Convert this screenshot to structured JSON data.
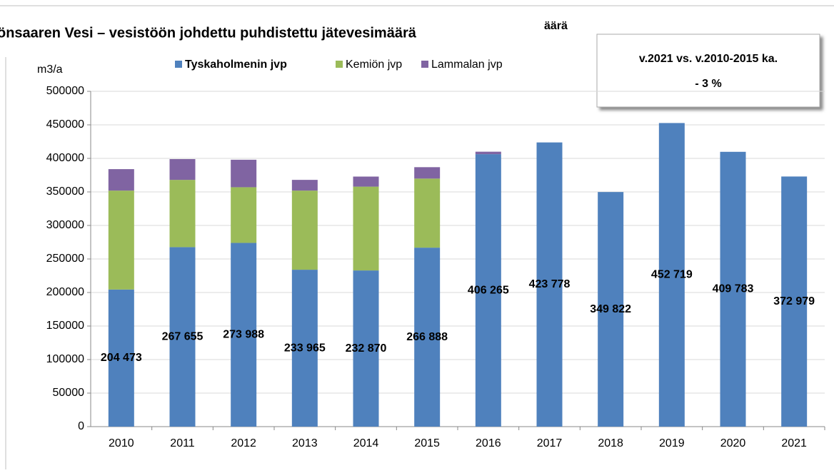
{
  "chart_data": {
    "type": "stacked_bar",
    "title": "önsaaren Vesi – vesistöön johdettu puhdistettu jätevesimäärä",
    "title_fragment": "äärä",
    "y_label": "m3/a",
    "annotation": [
      "v.2021 vs. v.2010-2015 ka.",
      "- 3 %"
    ],
    "categories": [
      "2010",
      "2011",
      "2012",
      "2013",
      "2014",
      "2015",
      "2016",
      "2017",
      "2018",
      "2019",
      "2020",
      "2021"
    ],
    "series": [
      {
        "name": "Tyskaholmenin jvp",
        "color": "#4f81bd",
        "values": [
          204473,
          267655,
          273988,
          233965,
          232870,
          266888,
          406265,
          423778,
          349822,
          452719,
          409783,
          372979
        ],
        "value_labels": [
          "204 473",
          "267 655",
          "273 988",
          "233 965",
          "232 870",
          "266 888",
          "406 265",
          "423 778",
          "349 822",
          "452 719",
          "409 783",
          "372 979"
        ]
      },
      {
        "name": "Kemiön jvp",
        "color": "#9bbb59",
        "values": [
          147500,
          100300,
          83000,
          118000,
          125000,
          103000,
          null,
          null,
          null,
          null,
          null,
          null
        ]
      },
      {
        "name": "Lammalan jvp",
        "color": "#8064a2",
        "values": [
          32000,
          31000,
          41000,
          16000,
          15000,
          17000,
          3700,
          null,
          null,
          null,
          null,
          null
        ]
      }
    ],
    "ylim": [
      0,
      500000
    ],
    "yticks": [
      0,
      50000,
      100000,
      150000,
      200000,
      250000,
      300000,
      350000,
      400000,
      450000,
      500000
    ],
    "grid": true
  }
}
